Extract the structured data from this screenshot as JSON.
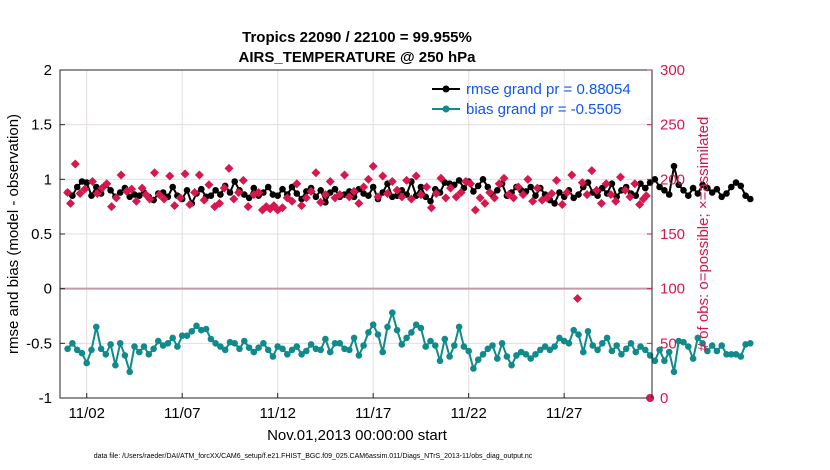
{
  "chart_data": {
    "type": "line",
    "title": "Tropics 22090 / 22100 = 99.955%",
    "subtitle": "AIRS_TEMPERATURE @ 250 hPa",
    "xlabel": "Nov.01,2013 00:00:00 start",
    "ylabel_left": "rmse and bias (model - observation)",
    "ylabel_right": "# of obs: o=possible; ×=assimilated",
    "footer": "data file: /Users/raeder/DAI/ATM_forcXX/CAM6_setup/f.e21.FHIST_BGC.f09_025.CAM6assim.011/Diags_NTrS_2013-11/obs_diag_output.nc",
    "xlim": [
      0.6,
      31.6
    ],
    "ylim_left": [
      -1,
      2
    ],
    "ylim_right": [
      0,
      300
    ],
    "grid": true,
    "legend_position": "top-right",
    "x_ticks": [
      {
        "value": 2,
        "label": "11/02"
      },
      {
        "value": 7,
        "label": "11/07"
      },
      {
        "value": 12,
        "label": "11/12"
      },
      {
        "value": 17,
        "label": "11/17"
      },
      {
        "value": 22,
        "label": "11/22"
      },
      {
        "value": 27,
        "label": "11/27"
      }
    ],
    "y_ticks_left": [
      "-1",
      "-0.5",
      "0",
      "0.5",
      "1",
      "1.5",
      "2"
    ],
    "y_ticks_right": [
      "0",
      "50",
      "100",
      "150",
      "200",
      "250",
      "300"
    ],
    "colors": {
      "rmse": "#000000",
      "bias": "#108a8a",
      "obs": "#d6184e",
      "zero_line": "#c09ca4",
      "grid": "#e3dde0",
      "legend_text": "#1155ee"
    },
    "series": [
      {
        "name": "rmse grand pr = 0.88054",
        "axis": "left",
        "x_start": 1.0,
        "x_step": 0.25,
        "values": [
          0.88,
          0.85,
          0.93,
          0.98,
          0.97,
          0.85,
          0.93,
          0.87,
          0.95,
          0.9,
          0.84,
          0.88,
          0.92,
          0.84,
          0.86,
          0.85,
          0.88,
          0.84,
          0.81,
          0.87,
          0.88,
          0.84,
          0.93,
          0.85,
          0.82,
          0.9,
          0.78,
          0.87,
          0.91,
          0.84,
          0.85,
          0.9,
          0.86,
          0.94,
          0.88,
          0.98,
          0.9,
          0.86,
          0.83,
          0.92,
          0.85,
          0.88,
          0.93,
          0.86,
          0.85,
          0.91,
          0.86,
          0.93,
          0.87,
          0.82,
          0.89,
          0.92,
          0.84,
          0.9,
          0.79,
          0.88,
          0.91,
          0.84,
          0.86,
          0.89,
          0.84,
          0.91,
          0.87,
          0.85,
          0.93,
          0.82,
          0.88,
          0.96,
          0.84,
          0.85,
          0.9,
          0.86,
          0.98,
          0.85,
          0.93,
          0.84,
          0.8,
          0.91,
          0.88,
          0.97,
          0.96,
          0.95,
          0.99,
          0.92,
          0.98,
          0.89,
          0.94,
          1.0,
          0.93,
          0.86,
          0.9,
          0.96,
          0.85,
          0.88,
          0.93,
          0.9,
          0.89,
          0.93,
          0.85,
          0.92,
          0.86,
          0.81,
          0.78,
          0.88,
          0.84,
          0.9,
          0.83,
          0.86,
          0.93,
          0.97,
          0.88,
          0.85,
          0.92,
          0.87,
          0.96,
          0.84,
          0.9,
          0.93,
          0.87,
          0.85,
          0.96,
          0.92,
          0.97,
          1.0,
          0.93,
          0.9,
          0.86,
          1.12,
          0.95,
          0.9,
          0.85,
          0.92,
          0.87,
          0.95,
          0.92,
          0.88,
          0.91,
          0.84,
          0.87,
          0.93,
          0.97,
          0.94,
          0.85,
          0.82
        ]
      },
      {
        "name": "bias grand pr = -0.5505",
        "axis": "left",
        "x_start": 1.0,
        "x_step": 0.25,
        "values": [
          -0.55,
          -0.5,
          -0.56,
          -0.59,
          -0.68,
          -0.56,
          -0.35,
          -0.55,
          -0.6,
          -0.51,
          -0.7,
          -0.5,
          -0.61,
          -0.76,
          -0.53,
          -0.58,
          -0.53,
          -0.6,
          -0.55,
          -0.48,
          -0.52,
          -0.5,
          -0.45,
          -0.53,
          -0.43,
          -0.43,
          -0.39,
          -0.34,
          -0.38,
          -0.37,
          -0.46,
          -0.5,
          -0.53,
          -0.56,
          -0.49,
          -0.5,
          -0.55,
          -0.48,
          -0.54,
          -0.58,
          -0.54,
          -0.5,
          -0.56,
          -0.62,
          -0.53,
          -0.55,
          -0.6,
          -0.56,
          -0.53,
          -0.6,
          -0.57,
          -0.51,
          -0.55,
          -0.56,
          -0.46,
          -0.58,
          -0.5,
          -0.5,
          -0.55,
          -0.56,
          -0.45,
          -0.61,
          -0.52,
          -0.4,
          -0.33,
          -0.42,
          -0.58,
          -0.35,
          -0.22,
          -0.38,
          -0.51,
          -0.45,
          -0.4,
          -0.33,
          -0.36,
          -0.53,
          -0.48,
          -0.52,
          -0.66,
          -0.46,
          -0.62,
          -0.52,
          -0.35,
          -0.53,
          -0.57,
          -0.73,
          -0.65,
          -0.6,
          -0.55,
          -0.52,
          -0.64,
          -0.5,
          -0.62,
          -0.7,
          -0.61,
          -0.58,
          -0.6,
          -0.64,
          -0.6,
          -0.56,
          -0.53,
          -0.56,
          -0.53,
          -0.45,
          -0.48,
          -0.5,
          -0.38,
          -0.42,
          -0.58,
          -0.39,
          -0.52,
          -0.56,
          -0.5,
          -0.45,
          -0.57,
          -0.52,
          -0.6,
          -0.55,
          -0.5,
          -0.58,
          -0.53,
          -0.56,
          -0.61,
          -0.66,
          -0.56,
          -0.66,
          -0.58,
          -0.76,
          -0.48,
          -0.49,
          -0.53,
          -0.64,
          -0.45,
          -0.5,
          -0.57,
          -0.52,
          -0.57,
          -0.52,
          -0.6,
          -0.6,
          -0.6,
          -0.62,
          -0.51,
          -0.5
        ]
      },
      {
        "name": "# of obs possible",
        "axis": "right",
        "marker": "circle",
        "points": [
          [
            31.5,
            0
          ]
        ]
      },
      {
        "name": "# of obs assimilated",
        "axis": "right",
        "marker": "diamond",
        "points": [
          [
            1.0,
            188
          ],
          [
            1.15,
            178
          ],
          [
            1.4,
            214
          ],
          [
            1.65,
            187
          ],
          [
            1.9,
            191
          ],
          [
            2.3,
            198
          ],
          [
            2.55,
            187
          ],
          [
            2.8,
            192
          ],
          [
            3.05,
            196
          ],
          [
            3.3,
            175
          ],
          [
            3.55,
            183
          ],
          [
            3.8,
            204
          ],
          [
            4.1,
            189
          ],
          [
            4.35,
            191
          ],
          [
            4.6,
            180
          ],
          [
            4.9,
            192
          ],
          [
            5.1,
            186
          ],
          [
            5.3,
            182
          ],
          [
            5.55,
            206
          ],
          [
            5.8,
            186
          ],
          [
            6.05,
            182
          ],
          [
            6.35,
            203
          ],
          [
            6.6,
            176
          ],
          [
            6.9,
            183
          ],
          [
            7.15,
            205
          ],
          [
            7.4,
            177
          ],
          [
            7.65,
            188
          ],
          [
            7.9,
            204
          ],
          [
            8.15,
            181
          ],
          [
            8.4,
            195
          ],
          [
            8.7,
            175
          ],
          [
            8.95,
            178
          ],
          [
            9.2,
            192
          ],
          [
            9.45,
            210
          ],
          [
            9.7,
            182
          ],
          [
            9.95,
            188
          ],
          [
            10.2,
            199
          ],
          [
            10.45,
            175
          ],
          [
            10.75,
            186
          ],
          [
            11.0,
            188
          ],
          [
            11.2,
            172
          ],
          [
            11.4,
            175
          ],
          [
            11.6,
            173
          ],
          [
            11.8,
            176
          ],
          [
            12.0,
            172
          ],
          [
            12.25,
            174
          ],
          [
            12.5,
            183
          ],
          [
            12.75,
            180
          ],
          [
            13.0,
            196
          ],
          [
            13.25,
            176
          ],
          [
            13.5,
            183
          ],
          [
            13.75,
            189
          ],
          [
            14.0,
            206
          ],
          [
            14.25,
            179
          ],
          [
            14.5,
            186
          ],
          [
            14.75,
            198
          ],
          [
            15.0,
            183
          ],
          [
            15.25,
            186
          ],
          [
            15.5,
            204
          ],
          [
            15.75,
            184
          ],
          [
            16.0,
            189
          ],
          [
            16.25,
            178
          ],
          [
            16.5,
            193
          ],
          [
            16.75,
            200
          ],
          [
            17.0,
            212
          ],
          [
            17.25,
            184
          ],
          [
            17.5,
            203
          ],
          [
            17.75,
            187
          ],
          [
            18.0,
            198
          ],
          [
            18.25,
            190
          ],
          [
            18.5,
            184
          ],
          [
            18.75,
            199
          ],
          [
            19.0,
            182
          ],
          [
            19.25,
            203
          ],
          [
            19.5,
            186
          ],
          [
            19.8,
            193
          ],
          [
            20.05,
            174
          ],
          [
            20.3,
            187
          ],
          [
            20.55,
            201
          ],
          [
            20.8,
            183
          ],
          [
            21.05,
            192
          ],
          [
            21.35,
            184
          ],
          [
            21.6,
            188
          ],
          [
            21.85,
            198
          ],
          [
            22.1,
            196
          ],
          [
            22.35,
            172
          ],
          [
            22.6,
            183
          ],
          [
            22.85,
            178
          ],
          [
            23.1,
            188
          ],
          [
            23.35,
            183
          ],
          [
            23.6,
            196
          ],
          [
            23.85,
            201
          ],
          [
            24.1,
            186
          ],
          [
            24.35,
            183
          ],
          [
            24.6,
            193
          ],
          [
            24.85,
            186
          ],
          [
            25.1,
            200
          ],
          [
            25.35,
            180
          ],
          [
            25.6,
            192
          ],
          [
            25.85,
            181
          ],
          [
            26.1,
            183
          ],
          [
            26.35,
            187
          ],
          [
            26.6,
            199
          ],
          [
            26.9,
            177
          ],
          [
            27.15,
            188
          ],
          [
            27.4,
            204
          ],
          [
            27.7,
            91
          ],
          [
            27.95,
            197
          ],
          [
            28.2,
            186
          ],
          [
            28.45,
            208
          ],
          [
            28.7,
            190
          ],
          [
            28.95,
            178
          ],
          [
            29.2,
            196
          ],
          [
            29.45,
            186
          ],
          [
            29.7,
            180
          ],
          [
            29.95,
            202
          ],
          [
            30.2,
            190
          ],
          [
            30.45,
            184
          ],
          [
            30.7,
            196
          ],
          [
            30.95,
            177
          ],
          [
            31.15,
            182
          ],
          [
            31.3,
            185
          ]
        ]
      }
    ]
  }
}
